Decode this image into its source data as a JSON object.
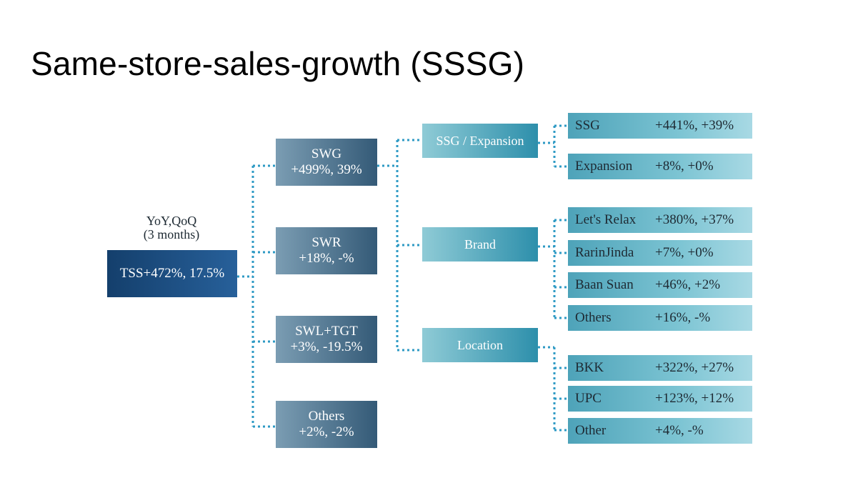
{
  "title": "Same-store-sales-growth (SSSG)",
  "root": {
    "caption_line1": "YoY,QoQ",
    "caption_line2": "(3 months)",
    "label": "TSS+472%, 17.5%"
  },
  "segments": [
    {
      "name": "SWG",
      "value": "+499%, 39%"
    },
    {
      "name": "SWR",
      "value": "+18%, -%"
    },
    {
      "name": "SWL+TGT",
      "value": "+3%, -19.5%"
    },
    {
      "name": "Others",
      "value": "+2%, -2%"
    }
  ],
  "dimensions": [
    {
      "name": "SSG / Expansion",
      "items": [
        {
          "name": "SSG",
          "value": "+441%, +39%"
        },
        {
          "name": "Expansion",
          "value": "+8%, +0%"
        }
      ]
    },
    {
      "name": "Brand",
      "items": [
        {
          "name": "Let's Relax",
          "value": "+380%, +37%"
        },
        {
          "name": "RarinJinda",
          "value": "+7%, +0%"
        },
        {
          "name": "Baan Suan",
          "value": "+46%, +2%"
        },
        {
          "name": "Others",
          "value": "+16%, -%"
        }
      ]
    },
    {
      "name": "Location",
      "items": [
        {
          "name": "BKK",
          "value": "+322%, +27%"
        },
        {
          "name": "UPC",
          "value": "+123%, +12%"
        },
        {
          "name": "Other",
          "value": "+4%, -%"
        }
      ]
    }
  ],
  "colors": {
    "root": "#1d4f82",
    "segment": "#4e7490",
    "dimension": "#4aa6bf",
    "leaf": "#7cc4d3",
    "connector": "#2e9ac4"
  }
}
